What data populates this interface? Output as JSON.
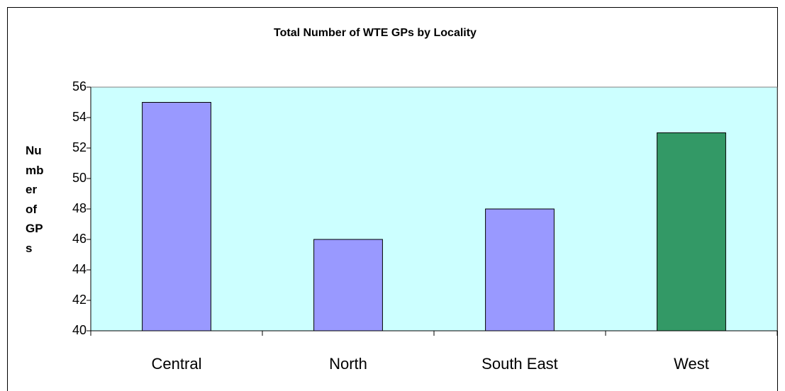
{
  "chart_data": {
    "type": "bar",
    "title": "Total Number of WTE GPs by Locality",
    "y_label": "Number of GPs",
    "categories": [
      "Central",
      "North",
      "South East",
      "West"
    ],
    "values": [
      55,
      46,
      48,
      53
    ],
    "colors": [
      "#9999ff",
      "#9999ff",
      "#9999ff",
      "#339966"
    ],
    "plot_background": "#ccffff",
    "ylim": [
      40,
      56
    ],
    "yticks": [
      40,
      42,
      44,
      46,
      48,
      50,
      52,
      54,
      56
    ],
    "grid": false
  }
}
